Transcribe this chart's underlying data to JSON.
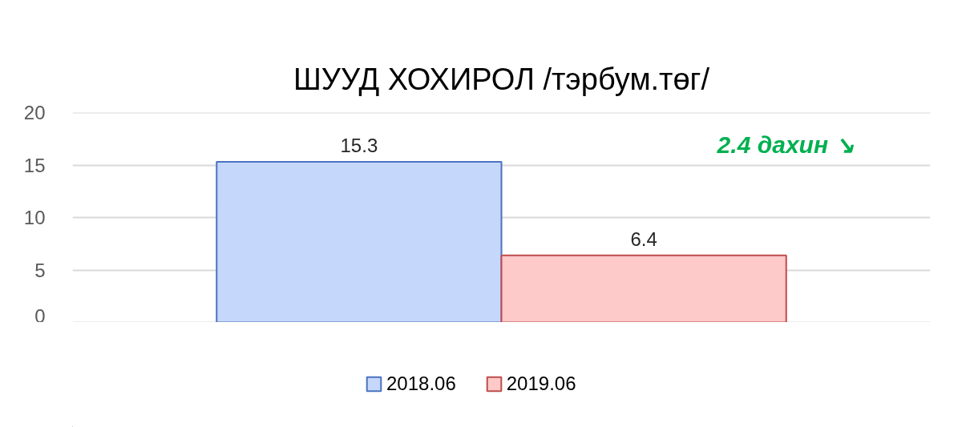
{
  "chart_data": {
    "type": "bar",
    "title": "ШУУД ХОХИРОЛ /тэрбум.төг/",
    "categories": [
      null
    ],
    "series": [
      {
        "name": "2018.06",
        "color": "#c5d7fa",
        "values": [
          15.3
        ]
      },
      {
        "name": "2019.06",
        "color": "#fdc9c9",
        "values": [
          6.4
        ]
      }
    ],
    "ylim": [
      0,
      20
    ],
    "yticks": [
      0,
      5,
      10,
      15,
      20
    ],
    "grid": "y",
    "legend": "bottom",
    "data_labels": true,
    "annotations": [
      "2.4 дахин ↘"
    ]
  }
}
